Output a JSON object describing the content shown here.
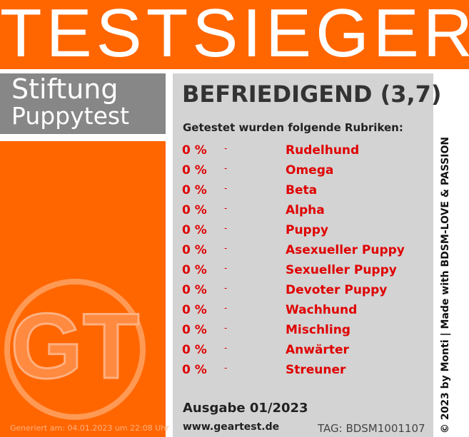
{
  "header": {
    "title": "TESTSIEGER"
  },
  "brand": {
    "line1": "Stiftung",
    "line2": "Puppytest",
    "logo": "GT"
  },
  "result": {
    "grade": "BEFRIEDIGEND (3,7)",
    "intro": "Getestet wurden folgende Rubriken:",
    "rows": [
      [
        "0 %",
        "-",
        "Rudelhund"
      ],
      [
        "0 %",
        "-",
        "Omega"
      ],
      [
        "0 %",
        "-",
        "Beta"
      ],
      [
        "0 %",
        "-",
        "Alpha"
      ],
      [
        "0 %",
        "-",
        "Puppy"
      ],
      [
        "0 %",
        "-",
        "Asexueller Puppy"
      ],
      [
        "0 %",
        "-",
        "Sexueller Puppy"
      ],
      [
        "0 %",
        "-",
        "Devoter Puppy"
      ],
      [
        "0 %",
        "-",
        "Wachhund"
      ],
      [
        "0 %",
        "-",
        "Mischling"
      ],
      [
        "0 %",
        "-",
        "Anwärter"
      ],
      [
        "0 %",
        "-",
        "Streuner"
      ]
    ]
  },
  "footer": {
    "issue": "Ausgabe 01/2023",
    "site": "www.geartest.de",
    "tag": "TAG: BDSM1001107",
    "generated": "Generiert am: 04.01.2023 um 22:08 Uhr"
  },
  "side": {
    "credit": "© 2023 by Monti | Made with BDSM-LOVE & PASSION"
  }
}
